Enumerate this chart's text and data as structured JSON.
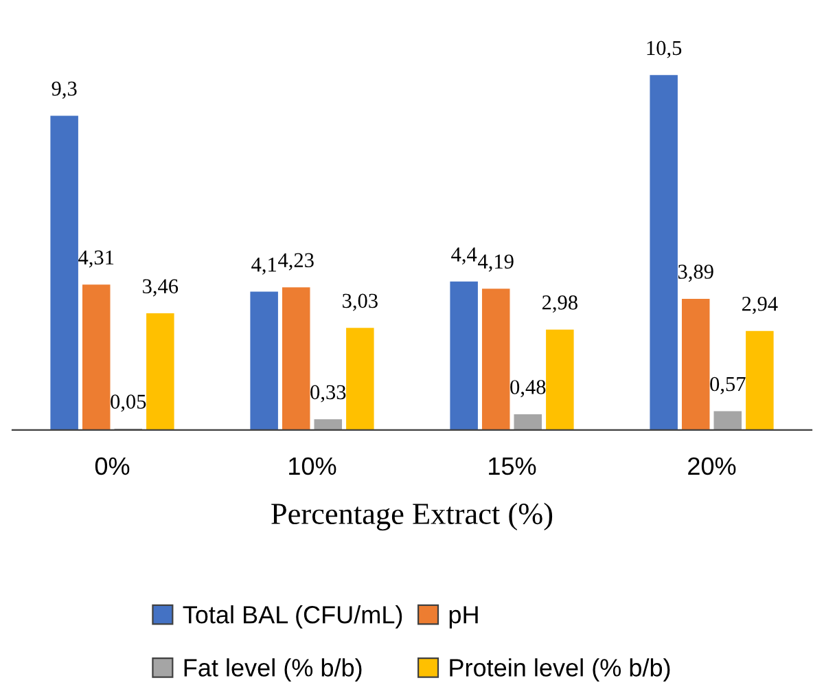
{
  "chart_data": {
    "type": "bar",
    "xlabel": "Percentage Extract (%)",
    "categories": [
      "0%",
      "10%",
      "15%",
      "20%"
    ],
    "series": [
      {
        "name": "Total BAL (CFU/mL)",
        "color": "#4472c4",
        "values": [
          9.3,
          4.1,
          4.4,
          10.5
        ],
        "value_labels": [
          "9,3",
          "4,1",
          "4,4",
          "10,5"
        ]
      },
      {
        "name": "pH",
        "color": "#ed7d31",
        "values": [
          4.31,
          4.23,
          4.19,
          3.89
        ],
        "value_labels": [
          "4,31",
          "4,23",
          "4,19",
          "3,89"
        ]
      },
      {
        "name": "Fat level (% b/b)",
        "color": "#a5a5a5",
        "values": [
          0.05,
          0.33,
          0.48,
          0.57
        ],
        "value_labels": [
          "0,05",
          "0,33",
          "0,48",
          "0,57"
        ]
      },
      {
        "name": "Protein level (% b/b)",
        "color": "#ffc000",
        "values": [
          3.46,
          3.03,
          2.98,
          2.94
        ],
        "value_labels": [
          "3,46",
          "3,03",
          "2,98",
          "2,94"
        ]
      }
    ],
    "legend": "bottom",
    "grid": false
  }
}
